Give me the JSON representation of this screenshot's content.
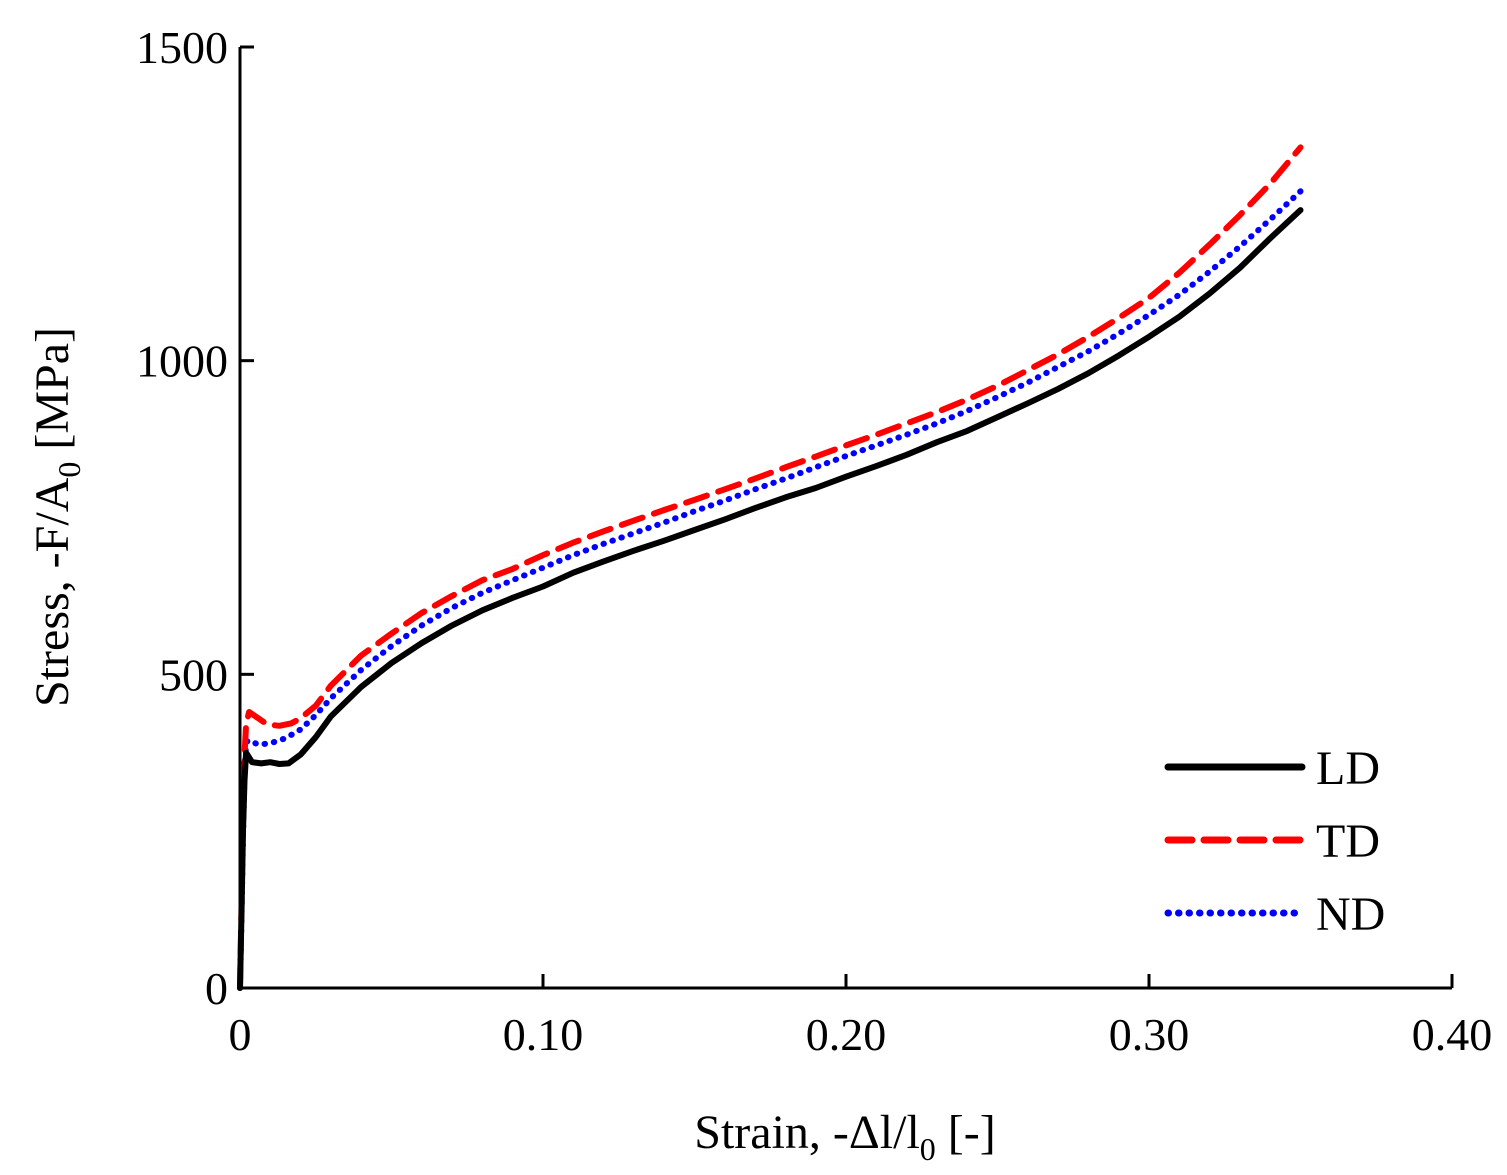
{
  "chart_data": {
    "type": "line",
    "xlabel_parts": [
      "Strain, -Δl/l",
      "0",
      " [-]"
    ],
    "ylabel_parts": [
      "Stress, -F/A",
      "0",
      " [MPa]"
    ],
    "xlim": [
      0,
      0.4
    ],
    "ylim": [
      0,
      1500
    ],
    "x_ticks": [
      0,
      0.1,
      0.2,
      0.3,
      0.4
    ],
    "x_tick_labels": [
      "0",
      "0.10",
      "0.20",
      "0.30",
      "0.40"
    ],
    "y_ticks": [
      0,
      500,
      1000,
      1500
    ],
    "y_tick_labels": [
      "0",
      "500",
      "1000",
      "1500"
    ],
    "grid": false,
    "legend_position": "bottom-right",
    "series": [
      {
        "name": "LD",
        "color": "#000000",
        "style": "solid",
        "x": [
          0,
          0.0005,
          0.001,
          0.0015,
          0.002,
          0.004,
          0.007,
          0.01,
          0.013,
          0.016,
          0.02,
          0.025,
          0.03,
          0.04,
          0.05,
          0.06,
          0.07,
          0.08,
          0.09,
          0.1,
          0.11,
          0.12,
          0.13,
          0.14,
          0.15,
          0.16,
          0.17,
          0.18,
          0.19,
          0.2,
          0.21,
          0.22,
          0.23,
          0.24,
          0.25,
          0.26,
          0.27,
          0.28,
          0.29,
          0.3,
          0.31,
          0.32,
          0.33,
          0.34,
          0.35
        ],
        "y": [
          0,
          120,
          250,
          330,
          375,
          360,
          358,
          360,
          357,
          358,
          372,
          400,
          433,
          480,
          518,
          550,
          578,
          602,
          622,
          640,
          662,
          680,
          697,
          713,
          730,
          747,
          765,
          782,
          797,
          815,
          832,
          850,
          870,
          888,
          910,
          932,
          955,
          980,
          1008,
          1038,
          1070,
          1107,
          1148,
          1195,
          1240
        ]
      },
      {
        "name": "TD",
        "color": "#ff0000",
        "style": "dashed",
        "x": [
          0,
          0.0005,
          0.001,
          0.0015,
          0.002,
          0.003,
          0.006,
          0.009,
          0.013,
          0.017,
          0.02,
          0.025,
          0.03,
          0.04,
          0.05,
          0.06,
          0.07,
          0.08,
          0.09,
          0.1,
          0.11,
          0.12,
          0.13,
          0.14,
          0.15,
          0.16,
          0.17,
          0.18,
          0.19,
          0.2,
          0.21,
          0.22,
          0.23,
          0.24,
          0.25,
          0.26,
          0.27,
          0.28,
          0.29,
          0.3,
          0.31,
          0.32,
          0.33,
          0.34,
          0.35
        ],
        "y": [
          0,
          130,
          270,
          370,
          420,
          440,
          430,
          420,
          418,
          422,
          430,
          450,
          482,
          530,
          565,
          598,
          625,
          650,
          668,
          690,
          710,
          728,
          745,
          762,
          778,
          795,
          812,
          830,
          847,
          865,
          882,
          900,
          918,
          938,
          960,
          985,
          1010,
          1038,
          1068,
          1100,
          1140,
          1185,
          1232,
          1282,
          1340
        ]
      },
      {
        "name": "ND",
        "color": "#0000ff",
        "style": "dotted",
        "x": [
          0,
          0.0005,
          0.001,
          0.0015,
          0.002,
          0.003,
          0.006,
          0.01,
          0.015,
          0.02,
          0.025,
          0.03,
          0.04,
          0.05,
          0.06,
          0.07,
          0.08,
          0.09,
          0.1,
          0.11,
          0.12,
          0.13,
          0.14,
          0.15,
          0.16,
          0.17,
          0.18,
          0.19,
          0.2,
          0.21,
          0.22,
          0.23,
          0.24,
          0.25,
          0.26,
          0.27,
          0.28,
          0.29,
          0.3,
          0.31,
          0.32,
          0.33,
          0.34,
          0.35
        ],
        "y": [
          0,
          110,
          240,
          340,
          392,
          395,
          388,
          390,
          398,
          412,
          435,
          462,
          507,
          545,
          578,
          606,
          630,
          650,
          670,
          690,
          708,
          725,
          742,
          760,
          777,
          795,
          812,
          830,
          848,
          865,
          882,
          900,
          920,
          942,
          965,
          990,
          1015,
          1043,
          1073,
          1105,
          1142,
          1182,
          1225,
          1270
        ]
      }
    ]
  }
}
